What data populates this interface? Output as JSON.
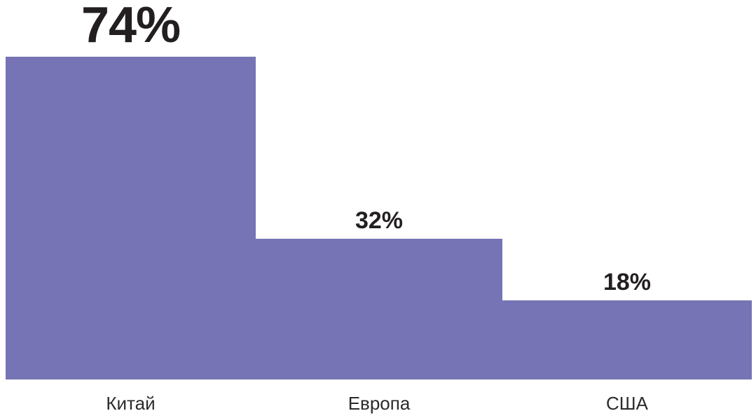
{
  "chart_data": {
    "type": "bar",
    "categories": [
      "Китай",
      "Европа",
      "США"
    ],
    "values": [
      74,
      32,
      18
    ],
    "value_labels": [
      "74%",
      "32%",
      "18%"
    ],
    "title": "",
    "xlabel": "",
    "ylabel": "",
    "ylim": [
      0,
      100
    ],
    "legend_position": "none",
    "grid": false,
    "bar_color": "#7674b4",
    "value_label_color": "#231f20",
    "category_label_color": "#2b2b2b"
  }
}
